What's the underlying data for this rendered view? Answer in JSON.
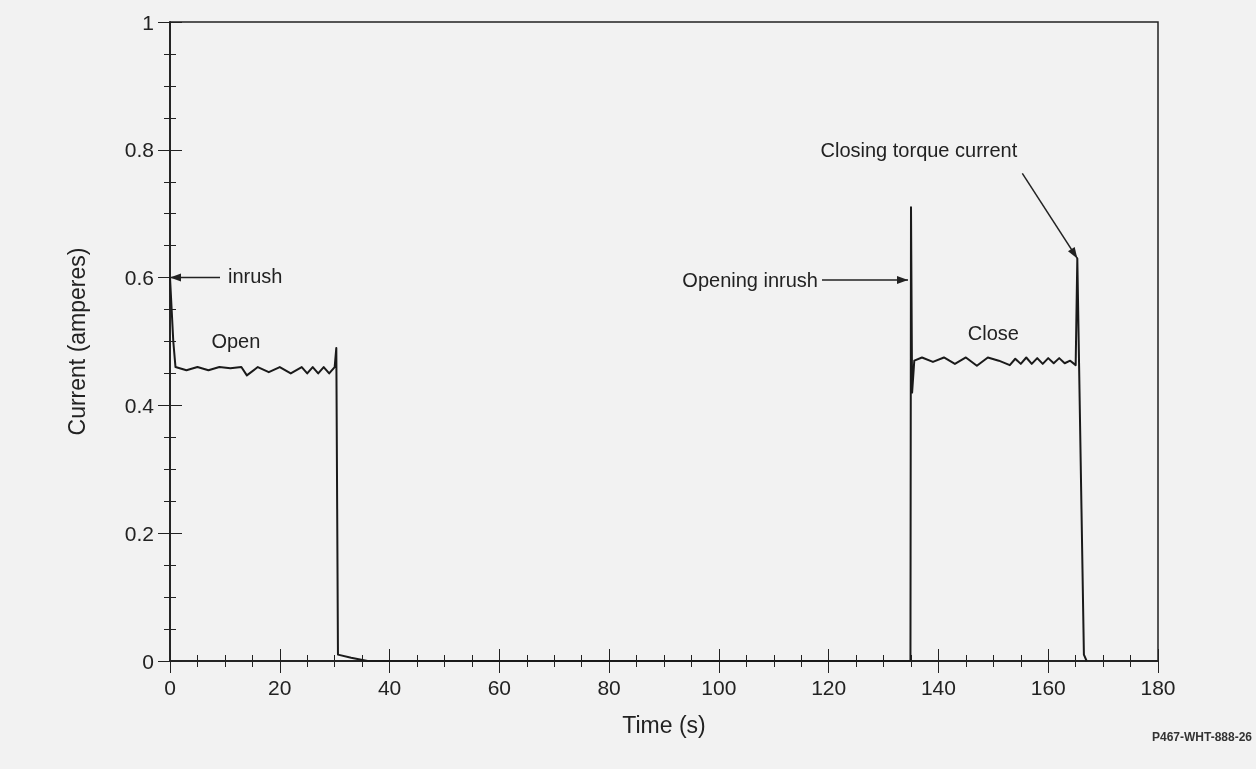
{
  "chart_data": {
    "type": "line",
    "xlabel": "Time (s)",
    "ylabel": "Current (amperes)",
    "x": [
      0,
      0.3,
      0.6,
      1,
      3,
      5,
      7,
      9,
      11,
      13,
      14,
      16,
      18,
      20,
      22,
      24,
      25,
      26,
      27,
      28,
      29,
      30,
      30.3,
      30.6,
      33,
      36,
      134.9,
      135,
      135.2,
      135.6,
      137,
      139,
      141,
      143,
      145,
      147,
      149,
      151,
      153,
      154,
      155,
      156,
      157,
      158,
      159,
      160,
      161,
      162,
      163,
      164,
      165,
      165.3,
      166.5,
      167
    ],
    "values": [
      0.6,
      0.55,
      0.5,
      0.46,
      0.455,
      0.46,
      0.455,
      0.46,
      0.458,
      0.46,
      0.447,
      0.46,
      0.452,
      0.46,
      0.45,
      0.46,
      0.45,
      0.46,
      0.45,
      0.46,
      0.45,
      0.46,
      0.49,
      0.01,
      0.005,
      0,
      0,
      0.71,
      0.42,
      0.47,
      0.475,
      0.468,
      0.475,
      0.465,
      0.475,
      0.462,
      0.475,
      0.47,
      0.463,
      0.473,
      0.465,
      0.475,
      0.465,
      0.474,
      0.465,
      0.474,
      0.466,
      0.474,
      0.466,
      0.47,
      0.463,
      0.63,
      0.01,
      0
    ],
    "color": "#1a1a1a",
    "marker": "none",
    "line_style": "solid",
    "grid": false,
    "xlim": [
      0,
      180
    ],
    "xticks": [
      0,
      20,
      40,
      60,
      80,
      100,
      120,
      140,
      160,
      180
    ],
    "ylim": [
      0,
      1
    ],
    "yticks": [
      0,
      0.2,
      0.4,
      0.6,
      0.8,
      1
    ],
    "annotations": [
      {
        "text": "inrush",
        "x": 0,
        "y": 0.6
      },
      {
        "text": "Open",
        "x": 12,
        "y": 0.46
      },
      "Opening inrush",
      {
        "text": "Closing torque current",
        "x": 165.3,
        "y": 0.63
      },
      {
        "text": "Close",
        "x": 150,
        "y": 0.475
      },
      "P467-WHT-888-26"
    ]
  }
}
